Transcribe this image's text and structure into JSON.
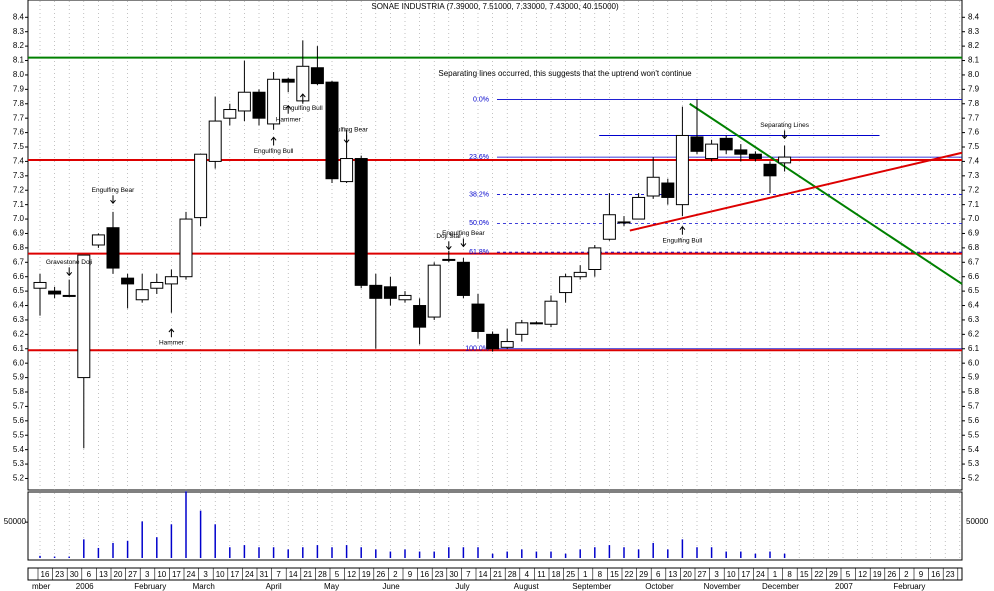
{
  "chart_data": {
    "type": "candlestick",
    "title": "SONAE INDUSTRIA (7.39000, 7.51000, 7.33000, 7.43000, 40.15000)",
    "note": "Separating lines occurred, this suggests that the uptrend won't continue",
    "categories": [
      "16",
      "23",
      "30",
      "6",
      "13",
      "20",
      "27",
      "3",
      "10",
      "17",
      "24",
      "3",
      "10",
      "17",
      "24",
      "31",
      "7",
      "14",
      "21",
      "28",
      "5",
      "12",
      "19",
      "26",
      "2",
      "9",
      "16",
      "23",
      "30",
      "7",
      "14",
      "21",
      "28",
      "4",
      "11",
      "18",
      "25",
      "1",
      "8",
      "15",
      "22",
      "29",
      "6",
      "13",
      "20",
      "27",
      "3",
      "10",
      "17",
      "24",
      "1",
      "8",
      "15",
      "22",
      "29",
      "5",
      "12",
      "19",
      "26",
      "2",
      "9",
      "16",
      "23",
      "2"
    ],
    "period_labels": [
      "mber",
      null,
      null,
      "2006",
      null,
      null,
      null,
      "February",
      null,
      null,
      null,
      "March",
      null,
      null,
      null,
      null,
      "April",
      null,
      null,
      null,
      "May",
      null,
      null,
      null,
      "June",
      null,
      null,
      null,
      null,
      "July",
      null,
      null,
      null,
      "August",
      null,
      null,
      null,
      "September",
      null,
      null,
      null,
      null,
      "October",
      null,
      null,
      null,
      "November",
      null,
      null,
      null,
      "December",
      null,
      null,
      null,
      null,
      "2007",
      null,
      null,
      null,
      "February",
      null,
      null,
      null,
      null
    ],
    "open": [
      6.52,
      6.5,
      6.47,
      5.9,
      6.82,
      6.94,
      6.59,
      6.44,
      6.52,
      6.55,
      6.6,
      7.01,
      7.4,
      7.7,
      7.75,
      7.88,
      7.66,
      7.97,
      7.82,
      8.05,
      7.95,
      7.26,
      7.42,
      6.54,
      6.53,
      6.44,
      6.4,
      6.32,
      6.72,
      6.7,
      6.41,
      6.2,
      6.11,
      6.2,
      6.28,
      6.27,
      6.49,
      6.6,
      6.65,
      6.86,
      6.98,
      7.0,
      7.16,
      7.25,
      7.1,
      7.57,
      7.42,
      7.56,
      7.48,
      7.45,
      7.38,
      7.39,
      null,
      null,
      null,
      null,
      null,
      null,
      null,
      null,
      null,
      null,
      null,
      null
    ],
    "high": [
      6.62,
      6.53,
      6.58,
      6.75,
      6.9,
      7.05,
      6.62,
      6.62,
      6.62,
      6.65,
      7.05,
      7.45,
      7.85,
      7.8,
      8.1,
      7.9,
      8.02,
      7.98,
      8.24,
      8.2,
      7.96,
      7.62,
      7.44,
      6.62,
      6.6,
      6.5,
      6.45,
      6.7,
      6.78,
      6.73,
      6.48,
      6.22,
      6.24,
      6.3,
      6.29,
      6.47,
      6.62,
      6.68,
      6.82,
      7.18,
      7.02,
      7.18,
      7.43,
      7.28,
      7.78,
      7.83,
      7.55,
      7.58,
      7.52,
      7.47,
      7.4,
      7.51,
      null,
      null,
      null,
      null,
      null,
      null,
      null,
      null,
      null,
      null,
      null,
      null
    ],
    "low": [
      6.33,
      6.45,
      6.46,
      5.41,
      6.8,
      6.62,
      6.38,
      6.42,
      6.48,
      6.35,
      6.58,
      6.95,
      7.35,
      7.65,
      7.68,
      7.65,
      7.62,
      7.88,
      7.8,
      7.93,
      7.25,
      7.25,
      6.52,
      6.1,
      6.4,
      6.42,
      6.13,
      6.3,
      6.7,
      6.45,
      6.17,
      6.08,
      6.1,
      6.15,
      6.27,
      6.25,
      6.42,
      6.58,
      6.6,
      6.85,
      6.95,
      7.0,
      7.14,
      7.1,
      7.02,
      7.45,
      7.4,
      7.45,
      7.4,
      7.4,
      7.18,
      7.33,
      null,
      null,
      null,
      null,
      null,
      null,
      null,
      null,
      null,
      null,
      null,
      null
    ],
    "close": [
      6.56,
      6.48,
      6.47,
      6.75,
      6.89,
      6.66,
      6.55,
      6.51,
      6.56,
      6.6,
      7.0,
      7.45,
      7.68,
      7.76,
      7.88,
      7.7,
      7.97,
      7.95,
      8.06,
      7.94,
      7.28,
      7.42,
      6.54,
      6.45,
      6.45,
      6.47,
      6.25,
      6.68,
      6.72,
      6.47,
      6.22,
      6.1,
      6.15,
      6.28,
      6.28,
      6.43,
      6.6,
      6.63,
      6.8,
      7.03,
      6.98,
      7.15,
      7.29,
      7.15,
      7.58,
      7.47,
      7.52,
      7.48,
      7.45,
      7.42,
      7.3,
      7.43,
      null,
      null,
      null,
      null,
      null,
      null,
      null,
      null,
      null,
      null,
      null,
      null
    ],
    "volume": [
      3000,
      2000,
      2000,
      26000,
      14000,
      21000,
      24000,
      51000,
      29000,
      47000,
      93000,
      66000,
      47000,
      15000,
      18000,
      15000,
      15000,
      12000,
      15000,
      18000,
      15000,
      18000,
      15000,
      12000,
      9000,
      12000,
      9000,
      9000,
      15000,
      15000,
      15000,
      6000,
      9000,
      12000,
      9000,
      9000,
      6000,
      12000,
      15000,
      18000,
      15000,
      12000,
      21000,
      12000,
      26000,
      15000,
      15000,
      9000,
      9000,
      6000,
      9000,
      6000,
      null,
      null,
      null,
      null,
      null,
      null,
      null,
      null,
      null,
      null,
      null,
      null
    ],
    "up_color": "#ffffff",
    "down_color": "#000000",
    "volume_color": "#0000cc",
    "ylim": [
      5.12,
      8.52
    ],
    "yticks": [
      8.4,
      8.3,
      8.2,
      8.1,
      {
        "value": 8,
        "label": "8.0"
      },
      7.9,
      7.8,
      7.7,
      7.6,
      7.5,
      7.4,
      7.3,
      7.2,
      7.1,
      {
        "value": 7,
        "label": "7.0"
      },
      6.9,
      6.8,
      6.7,
      6.6,
      6.5,
      6.4,
      6.3,
      6.2,
      6.1,
      {
        "value": 6,
        "label": "6.0"
      },
      5.9,
      5.8,
      5.7,
      5.6,
      5.5,
      5.4,
      5.3,
      5.2
    ],
    "volume_ylim": [
      0,
      92000
    ],
    "volume_yticks": [
      50000
    ],
    "levels": [
      {
        "value": 8.12,
        "color": "#008000"
      },
      {
        "value": 7.41,
        "color": "#dd0000"
      },
      {
        "value": 6.76,
        "color": "#dd0000"
      },
      {
        "value": 6.09,
        "color": "#dd0000"
      }
    ],
    "fibonacci": {
      "color": "#0000cc",
      "start": 31.3,
      "levels": [
        {
          "label": "0.0%",
          "value": 7.83,
          "dashed": false
        },
        {
          "label": "23.6%",
          "value": 7.43,
          "dashed": false
        },
        {
          "label": "38.2%",
          "value": 7.17,
          "dashed": true
        },
        {
          "label": "50.0%",
          "value": 6.97,
          "dashed": true
        },
        {
          "label": "61.8%",
          "value": 6.77,
          "dashed": true
        },
        {
          "label": "100.0%",
          "value": 6.1,
          "dashed": false
        }
      ]
    },
    "segments": [
      {
        "color": "#0000cc",
        "from": [
          38.3,
          7.58
        ],
        "to": [
          57.5,
          7.58
        ]
      }
    ],
    "trendlines": [
      {
        "color": "#008000",
        "from": [
          44.5,
          7.8
        ],
        "to": [
          63.2,
          6.55
        ]
      },
      {
        "color": "#dd0000",
        "from": [
          40.4,
          6.92
        ],
        "to": [
          63.2,
          7.46
        ]
      }
    ],
    "annotations": [
      {
        "text": "Gravestone Doji",
        "index": 2,
        "price": 6.7,
        "dir": "down"
      },
      {
        "text": "Engulfing Bear",
        "index": 5,
        "price": 7.2,
        "dir": "down"
      },
      {
        "text": "Hammer",
        "index": 9,
        "price": 6.14,
        "dir": "up"
      },
      {
        "text": "Engulfing Bull",
        "index": 16,
        "price": 7.47,
        "dir": "up"
      },
      {
        "text": "Hammer",
        "index": 17,
        "price": 7.69,
        "dir": "up"
      },
      {
        "text": "Engulfing Bull",
        "index": 18,
        "price": 7.77,
        "dir": "up"
      },
      {
        "text": "Engulfing Bear",
        "index": 21,
        "price": 7.62,
        "dir": "down"
      },
      {
        "text": "Doji Star",
        "index": 28,
        "price": 6.88,
        "dir": "down"
      },
      {
        "text": "Engulfing Bear",
        "index": 29,
        "price": 6.9,
        "dir": "down"
      },
      {
        "text": "Engulfing Bull",
        "index": 44,
        "price": 6.85,
        "dir": "up"
      },
      {
        "text": "Separating Lines",
        "index": 51,
        "price": 7.65,
        "dir": "down"
      }
    ]
  }
}
